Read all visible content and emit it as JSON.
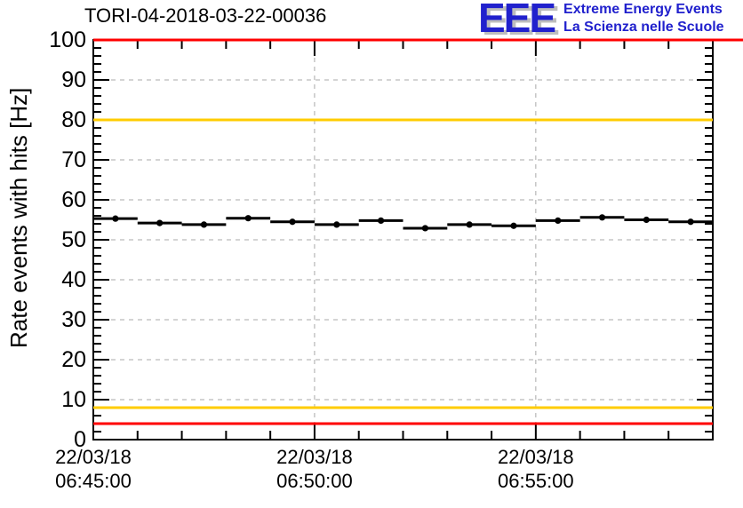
{
  "title": "TORI-04-2018-03-22-00036",
  "logo": {
    "acronym": "EEE",
    "line1": "Extreme Energy Events",
    "line2": "La Scienza nelle Scuole",
    "color": "#2121cd",
    "shadow_color": "#bdbdbd"
  },
  "chart_data": {
    "type": "scatter",
    "title": "TORI-04-2018-03-22-00036",
    "xlabel": "",
    "ylabel": "Rate events with hits [Hz]",
    "ylim": [
      0,
      100
    ],
    "y_major_step": 10,
    "y_minor_step": 2,
    "x_minutes_range": [
      0,
      14
    ],
    "x_minor_step_min": 1,
    "x_major_ticks": [
      {
        "minute": 0,
        "date": "22/03/18",
        "time": "06:45:00"
      },
      {
        "minute": 5,
        "date": "22/03/18",
        "time": "06:50:00"
      },
      {
        "minute": 10,
        "date": "22/03/18",
        "time": "06:55:00"
      }
    ],
    "grid": {
      "show": true,
      "color": "#a8a8a8",
      "dash": "5,5"
    },
    "legend": {
      "show": false
    },
    "thresholds": [
      {
        "name": "upper-alarm",
        "value": 100,
        "color": "#ff0000",
        "full_bleed_right": true
      },
      {
        "name": "upper-warning",
        "value": 80,
        "color": "#ffcc00",
        "full_bleed_right": false
      },
      {
        "name": "lower-warning",
        "value": 8,
        "color": "#ffcc00",
        "full_bleed_right": false
      },
      {
        "name": "lower-alarm",
        "value": 4,
        "color": "#ff0000",
        "full_bleed_right": false
      }
    ],
    "series": [
      {
        "name": "rate-events-with-hits",
        "marker": "filled-circle",
        "color": "#000000",
        "bin_width_min": 1,
        "points": [
          {
            "t_min": 0.5,
            "value": 55.3
          },
          {
            "t_min": 1.5,
            "value": 54.2
          },
          {
            "t_min": 2.5,
            "value": 53.8
          },
          {
            "t_min": 3.5,
            "value": 55.4
          },
          {
            "t_min": 4.5,
            "value": 54.5
          },
          {
            "t_min": 5.5,
            "value": 53.8
          },
          {
            "t_min": 6.5,
            "value": 54.8
          },
          {
            "t_min": 7.5,
            "value": 52.9
          },
          {
            "t_min": 8.5,
            "value": 53.8
          },
          {
            "t_min": 9.5,
            "value": 53.5
          },
          {
            "t_min": 10.5,
            "value": 54.8
          },
          {
            "t_min": 11.5,
            "value": 55.6
          },
          {
            "t_min": 12.5,
            "value": 55.0
          },
          {
            "t_min": 13.5,
            "value": 54.5
          }
        ]
      }
    ]
  }
}
